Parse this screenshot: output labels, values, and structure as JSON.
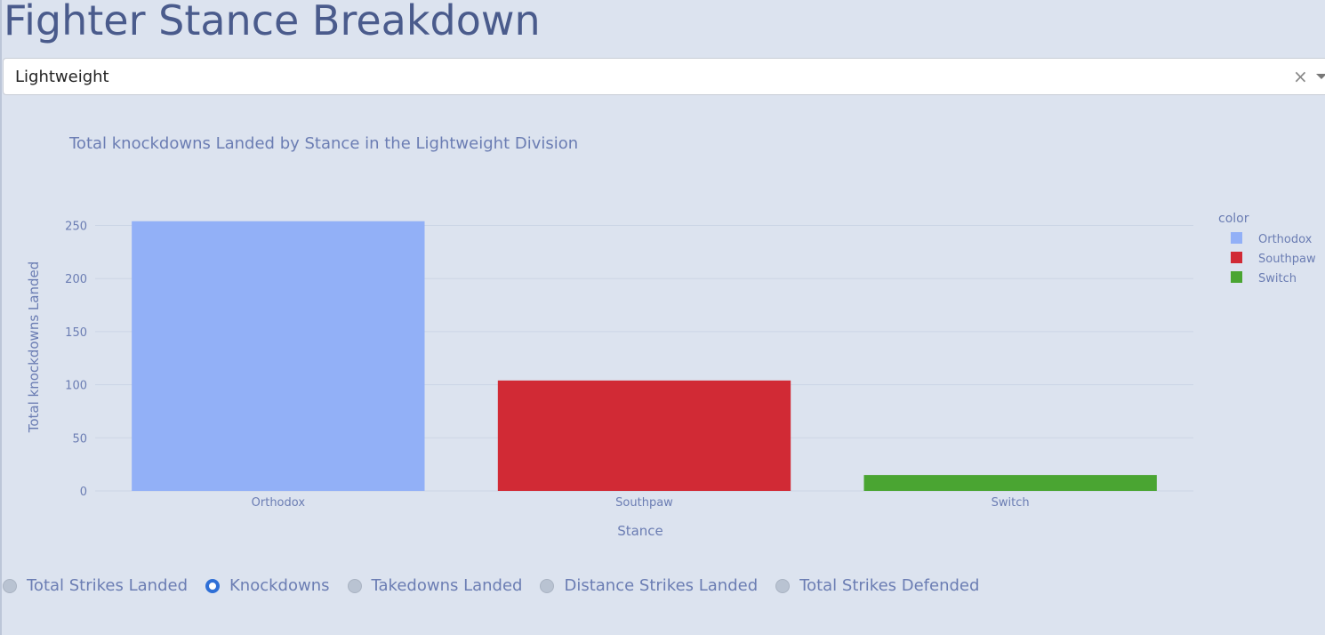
{
  "page": {
    "title": "Fighter Stance Breakdown"
  },
  "division_dropdown": {
    "selected": "Lightweight",
    "clear_icon": "close-icon",
    "arrow_icon": "chevron-down-icon"
  },
  "metric_options": [
    {
      "label": "Total Strikes Landed",
      "checked": false
    },
    {
      "label": "Knockdowns",
      "checked": true
    },
    {
      "label": "Takedowns Landed",
      "checked": false
    },
    {
      "label": "Distance Strikes Landed",
      "checked": false
    },
    {
      "label": "Total Strikes Defended",
      "checked": false
    }
  ],
  "chart_data": {
    "type": "bar",
    "title": "Total knockdowns Landed by Stance in the Lightweight Division",
    "xlabel": "Stance",
    "ylabel": "Total knockdowns Landed",
    "categories": [
      "Orthodox",
      "Southpaw",
      "Switch"
    ],
    "values": [
      254,
      104,
      15
    ],
    "colors": [
      "#92b0f7",
      "#d12a35",
      "#4aa532"
    ],
    "ylim": [
      0,
      263
    ],
    "yticks": [
      0,
      50,
      100,
      150,
      200,
      250
    ],
    "grid": true,
    "legend": {
      "title": "color",
      "placement": "top-right",
      "entries": [
        "Orthodox",
        "Southpaw",
        "Switch"
      ]
    }
  }
}
